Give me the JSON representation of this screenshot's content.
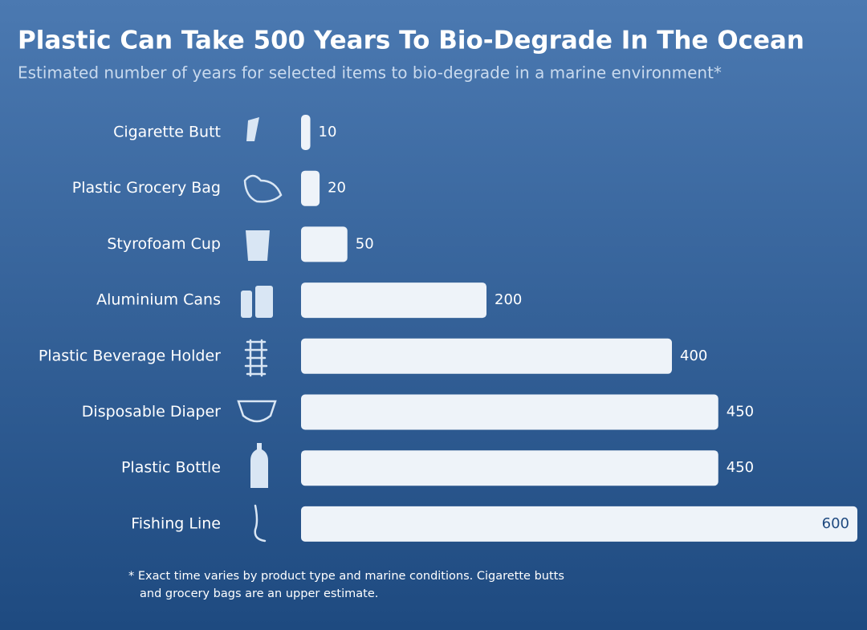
{
  "chart_data": {
    "type": "bar",
    "orientation": "horizontal",
    "title": "Plastic Can Take 500 Years To Bio-Degrade In The Ocean",
    "subtitle": "Estimated number of years for selected items to bio-degrade in a marine environment*",
    "categories": [
      "Cigarette Butt",
      "Plastic Grocery Bag",
      "Styrofoam Cup",
      "Aluminium Cans",
      "Plastic Beverage Holder",
      "Disposable Diaper",
      "Plastic Bottle",
      "Fishing Line"
    ],
    "values": [
      10,
      20,
      50,
      200,
      400,
      450,
      450,
      600
    ],
    "color": "#eef3f9",
    "note": [
      "* Exact time varies by product type and marine conditions. Cigarette butts",
      "and grocery bags are an upper estimate."
    ]
  }
}
